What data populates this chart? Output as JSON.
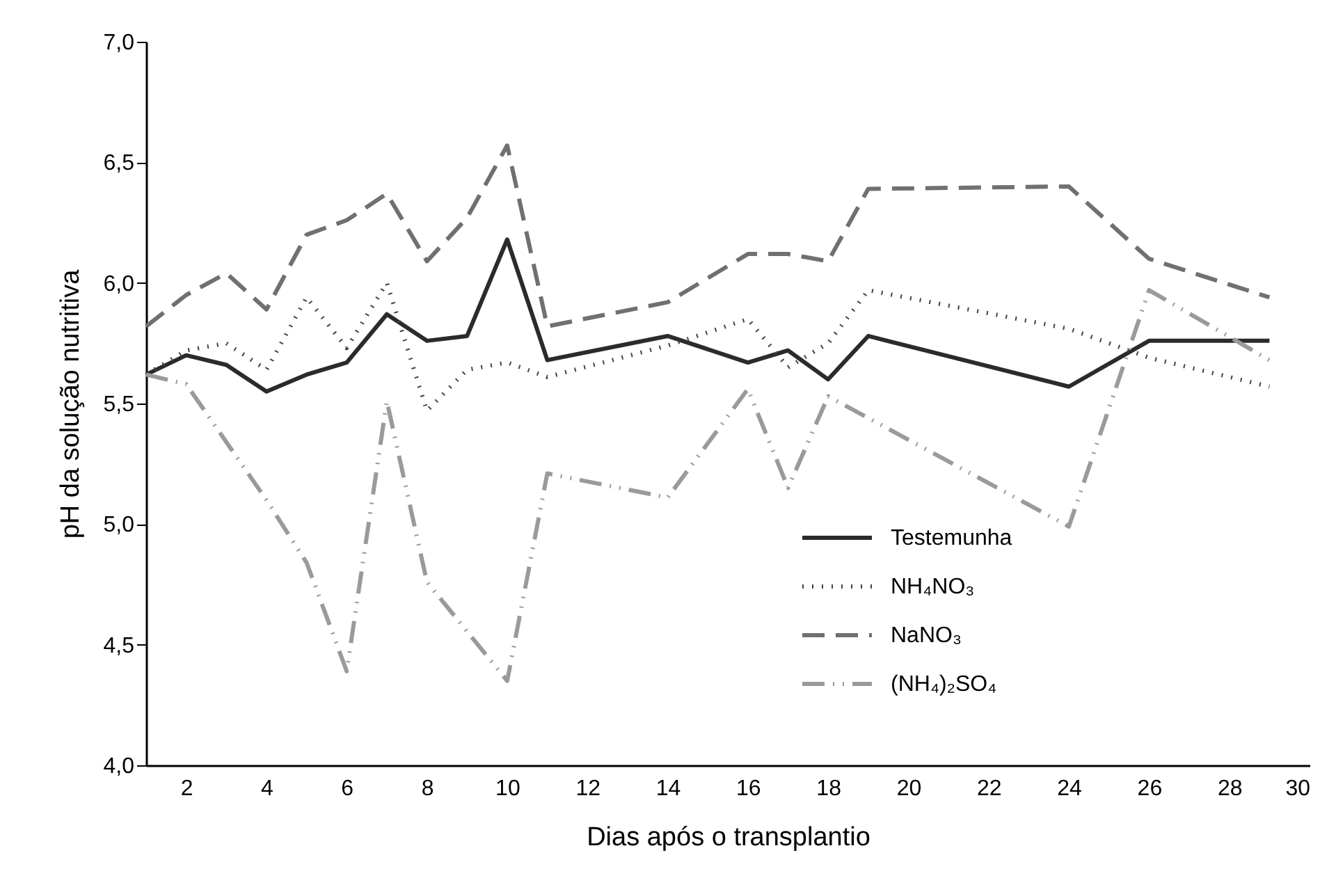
{
  "chart_data": {
    "type": "line",
    "xlabel": "Dias após o transplantio",
    "ylabel": "pH da solução nutritiva",
    "xlim": [
      1,
      30
    ],
    "xticks": [
      2,
      4,
      6,
      8,
      10,
      12,
      14,
      16,
      18,
      20,
      22,
      24,
      26,
      28,
      30
    ],
    "ylim": [
      4,
      7
    ],
    "yticks": [
      {
        "value": 4,
        "label": "4,0"
      },
      {
        "value": 4.5,
        "label": "4,5"
      },
      {
        "value": 5,
        "label": "5,0"
      },
      {
        "value": 5.5,
        "label": "5,5"
      },
      {
        "value": 6,
        "label": "6,0"
      },
      {
        "value": 6.5,
        "label": "6,5"
      },
      {
        "value": 7,
        "label": "7,0"
      }
    ],
    "x": [
      1,
      2,
      3,
      4,
      5,
      6,
      7,
      8,
      9,
      10,
      11,
      14,
      16,
      17,
      18,
      19,
      24,
      26,
      29
    ],
    "grid": false,
    "legend": "bottom right",
    "marker": "none",
    "series": [
      {
        "name": "Testemunha",
        "color": "#2b2b2b",
        "line_style": "solid",
        "values": [
          5.62,
          5.7,
          5.66,
          5.55,
          5.62,
          5.67,
          5.87,
          5.76,
          5.78,
          6.18,
          5.68,
          5.78,
          5.67,
          5.72,
          5.6,
          5.78,
          5.57,
          5.76,
          5.76
        ]
      },
      {
        "name": "NH₄NO₃",
        "color": "#444444",
        "line_style": "dotted",
        "values": [
          5.62,
          5.72,
          5.75,
          5.64,
          5.94,
          5.73,
          6.0,
          5.47,
          5.64,
          5.67,
          5.61,
          5.74,
          5.85,
          5.65,
          5.75,
          5.97,
          5.81,
          5.69,
          5.57
        ]
      },
      {
        "name": "NaNO₃",
        "color": "#707070",
        "line_style": "dashed",
        "values": [
          5.82,
          5.95,
          6.04,
          5.89,
          6.2,
          6.26,
          6.37,
          6.09,
          6.27,
          6.57,
          5.82,
          5.92,
          6.12,
          6.12,
          6.09,
          6.39,
          6.4,
          6.1,
          5.94
        ]
      },
      {
        "name": "(NH₄)₂SO₄",
        "color": "#9a9a9a",
        "line_style": "dashdot",
        "x": [
          1,
          2,
          4,
          5,
          6,
          7,
          8,
          10,
          11,
          14,
          16,
          17,
          18,
          24,
          26,
          29
        ],
        "values": [
          5.62,
          5.58,
          5.1,
          4.84,
          4.39,
          5.51,
          4.76,
          4.35,
          5.21,
          5.11,
          5.56,
          5.15,
          5.53,
          4.99,
          5.97,
          5.68
        ]
      }
    ]
  }
}
